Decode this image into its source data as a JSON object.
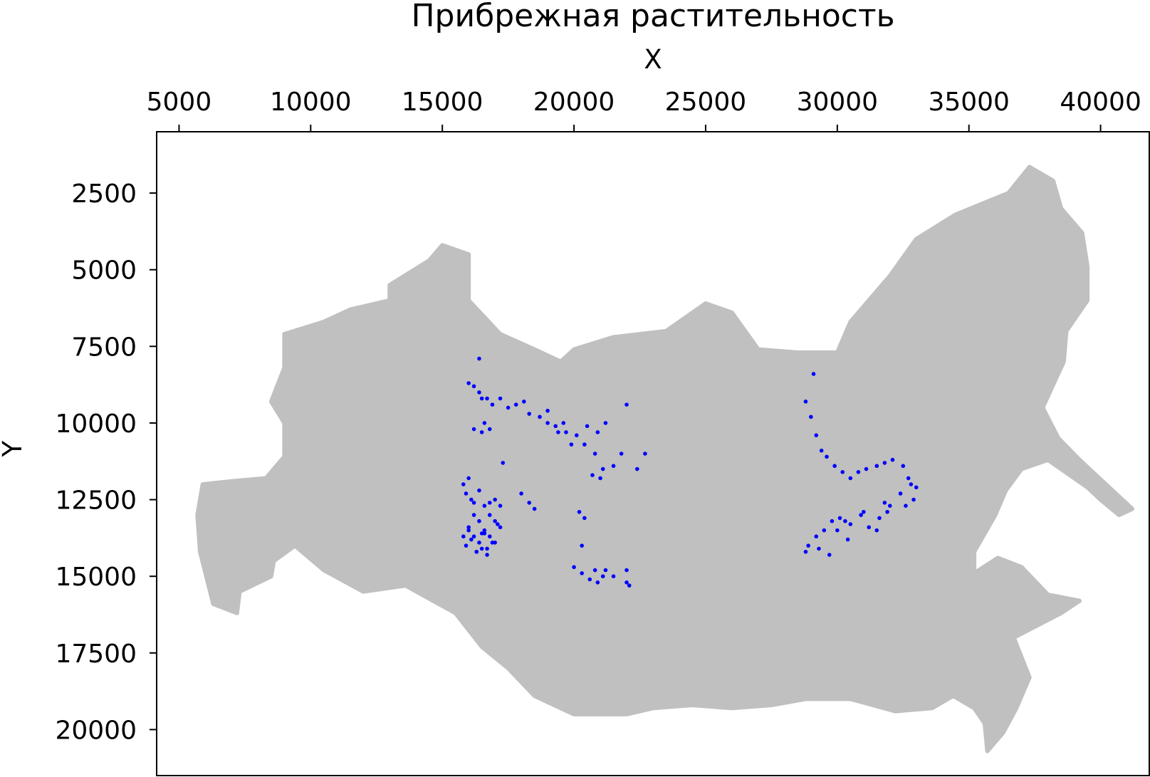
{
  "chart_data": {
    "type": "scatter",
    "title": "Прибрежная растительность",
    "xlabel": "X",
    "ylabel": "Y",
    "x_axis_position": "top",
    "y_axis_inverted": true,
    "xlim": [
      4150,
      41850
    ],
    "ylim": [
      21500,
      500
    ],
    "xticks": [
      5000,
      10000,
      15000,
      20000,
      25000,
      30000,
      35000,
      40000
    ],
    "yticks": [
      2500,
      5000,
      7500,
      10000,
      12500,
      15000,
      17500,
      20000
    ],
    "xtick_labels": [
      "5000",
      "10000",
      "15000",
      "20000",
      "25000",
      "30000",
      "35000",
      "40000"
    ],
    "ytick_labels": [
      "2500",
      "5000",
      "7500",
      "10000",
      "12500",
      "15000",
      "17500",
      "20000"
    ],
    "grid": false,
    "colors": {
      "background_territory": "#c0c0c0",
      "points": "#0000ff"
    },
    "background_outline": {
      "name": "territory",
      "color": "#c0c0c0",
      "polygon": [
        [
          5900,
          12000
        ],
        [
          7000,
          11900
        ],
        [
          8300,
          11800
        ],
        [
          9000,
          11100
        ],
        [
          9000,
          10000
        ],
        [
          8500,
          9300
        ],
        [
          9000,
          8200
        ],
        [
          9000,
          7100
        ],
        [
          10500,
          6700
        ],
        [
          11500,
          6300
        ],
        [
          13000,
          6000
        ],
        [
          13000,
          5500
        ],
        [
          14500,
          4700
        ],
        [
          15000,
          4200
        ],
        [
          16000,
          4500
        ],
        [
          16000,
          6000
        ],
        [
          17200,
          7100
        ],
        [
          18500,
          7600
        ],
        [
          19500,
          8000
        ],
        [
          20000,
          7600
        ],
        [
          21500,
          7200
        ],
        [
          23500,
          7000
        ],
        [
          25000,
          6100
        ],
        [
          26000,
          6400
        ],
        [
          27000,
          7600
        ],
        [
          28500,
          7700
        ],
        [
          30000,
          7700
        ],
        [
          30500,
          6700
        ],
        [
          32000,
          5200
        ],
        [
          33000,
          4000
        ],
        [
          34500,
          3200
        ],
        [
          36500,
          2500
        ],
        [
          37300,
          1650
        ],
        [
          38200,
          2100
        ],
        [
          38500,
          3000
        ],
        [
          39300,
          3800
        ],
        [
          39500,
          4900
        ],
        [
          39500,
          6000
        ],
        [
          38700,
          7000
        ],
        [
          38600,
          8000
        ],
        [
          37800,
          9500
        ],
        [
          38400,
          10500
        ],
        [
          39200,
          11200
        ],
        [
          40200,
          12000
        ],
        [
          41200,
          12800
        ],
        [
          40700,
          13000
        ],
        [
          40000,
          12500
        ],
        [
          39500,
          12100
        ],
        [
          38000,
          11200
        ],
        [
          37000,
          11500
        ],
        [
          36400,
          12200
        ],
        [
          36000,
          13000
        ],
        [
          35200,
          14200
        ],
        [
          35200,
          14900
        ],
        [
          36100,
          14400
        ],
        [
          37000,
          14700
        ],
        [
          38000,
          15600
        ],
        [
          39200,
          15800
        ],
        [
          38500,
          16200
        ],
        [
          37600,
          16600
        ],
        [
          36700,
          17000
        ],
        [
          37300,
          18300
        ],
        [
          36800,
          19300
        ],
        [
          36300,
          20100
        ],
        [
          35700,
          20700
        ],
        [
          35600,
          19800
        ],
        [
          35200,
          19300
        ],
        [
          34400,
          18900
        ],
        [
          33600,
          19300
        ],
        [
          32200,
          19400
        ],
        [
          30500,
          19000
        ],
        [
          28800,
          19000
        ],
        [
          27500,
          19200
        ],
        [
          26000,
          19300
        ],
        [
          24500,
          19200
        ],
        [
          23000,
          19300
        ],
        [
          22000,
          19500
        ],
        [
          20000,
          19500
        ],
        [
          18500,
          18900
        ],
        [
          17500,
          18000
        ],
        [
          16500,
          17300
        ],
        [
          15500,
          16200
        ],
        [
          13600,
          15300
        ],
        [
          12000,
          15500
        ],
        [
          10500,
          14800
        ],
        [
          9400,
          14000
        ],
        [
          8600,
          14500
        ],
        [
          8500,
          15000
        ],
        [
          7300,
          15500
        ],
        [
          7200,
          16200
        ],
        [
          6300,
          15900
        ],
        [
          5800,
          14200
        ],
        [
          5700,
          13000
        ]
      ]
    },
    "series": [
      {
        "color": "#0000ff",
        "x": [
          16000,
          16200,
          16400,
          16500,
          16700,
          16900,
          17200,
          17500,
          17800,
          18100,
          18300,
          18700,
          19000,
          19300,
          19700,
          20100,
          20500,
          20900,
          21200,
          16600,
          16800,
          16500,
          16200,
          16400,
          19400,
          19000,
          19600,
          19900,
          20400,
          20700,
          21000,
          21500,
          21800,
          22400,
          22700,
          22000,
          20800,
          21100,
          17300,
          18500,
          20200,
          20400,
          20300,
          21200,
          21500,
          22000,
          22000,
          22100,
          20000,
          20300,
          20600,
          20900,
          20800,
          21100,
          15800,
          15900,
          16000,
          16100,
          16200,
          16400,
          16600,
          16800,
          17000,
          17200,
          15800,
          16000,
          16200,
          16400,
          16600,
          16800,
          17000,
          17200,
          15900,
          16100,
          16300,
          16500,
          16700,
          16900,
          17100,
          16000,
          16200,
          16400,
          16600,
          16800,
          17000,
          16300,
          16500,
          16700,
          18300,
          18000,
          29100,
          28800,
          29000,
          29200,
          29400,
          29600,
          29900,
          30200,
          30500,
          30800,
          31100,
          31500,
          31800,
          32100,
          32500,
          32700,
          33000,
          32900,
          32600,
          32400,
          31900,
          31600,
          31200,
          30900,
          30500,
          30100,
          29800,
          29500,
          29200,
          28900,
          28800,
          29300,
          29700,
          30000,
          30300,
          31000,
          31500,
          32000,
          32800,
          31800,
          30400
        ],
        "y": [
          8700,
          8800,
          9000,
          9200,
          9200,
          9400,
          9200,
          9500,
          9400,
          9300,
          9700,
          9800,
          10000,
          10100,
          10300,
          10400,
          10100,
          10300,
          10000,
          10000,
          10200,
          10300,
          10200,
          7900,
          10300,
          9600,
          10000,
          10700,
          10700,
          11700,
          11800,
          11400,
          11000,
          11500,
          11000,
          9400,
          11000,
          11500,
          11300,
          12800,
          12900,
          13100,
          14000,
          14800,
          15000,
          15200,
          14800,
          15300,
          14700,
          14900,
          15100,
          15200,
          14800,
          15000,
          12000,
          12300,
          11800,
          12500,
          12600,
          12200,
          12700,
          12600,
          12500,
          12700,
          13700,
          13400,
          13000,
          13200,
          13600,
          13000,
          13200,
          13400,
          14000,
          13800,
          14200,
          13600,
          14100,
          13900,
          13300,
          13500,
          13700,
          13900,
          13500,
          13700,
          13900,
          14200,
          14100,
          14300,
          12600,
          12300,
          8400,
          9300,
          9800,
          10400,
          10900,
          11100,
          11400,
          11600,
          11800,
          11600,
          11500,
          11400,
          11300,
          11200,
          11400,
          11800,
          12100,
          12500,
          12700,
          12300,
          12900,
          13100,
          13400,
          13000,
          13300,
          13100,
          13200,
          13500,
          13700,
          14000,
          14200,
          14100,
          14300,
          13500,
          13200,
          12900,
          13500,
          12700,
          12000,
          12600,
          13800
        ]
      }
    ]
  }
}
